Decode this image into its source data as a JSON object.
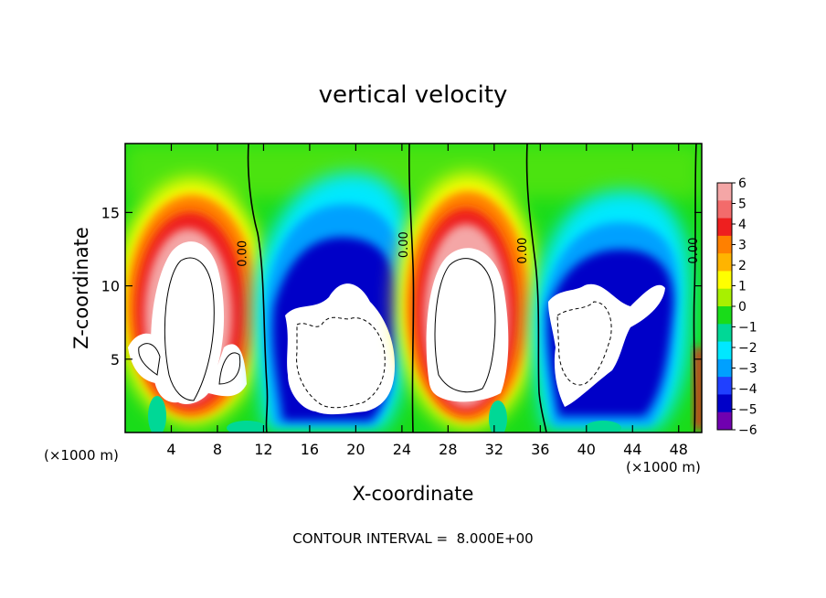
{
  "chart_data": {
    "type": "heatmap",
    "title": "vertical velocity",
    "xlabel": "X-coordinate",
    "ylabel": "Z-coordinate",
    "x_unit_left": "(×1000 m)",
    "x_unit_right": "(×1000 m)",
    "x_ticks": [
      4,
      8,
      12,
      16,
      20,
      24,
      28,
      32,
      36,
      40,
      44,
      48
    ],
    "y_ticks": [
      5,
      10,
      15
    ],
    "xlim": [
      0,
      50
    ],
    "ylim": [
      0,
      19.7
    ],
    "colorbar": {
      "levels": [
        -6,
        -5,
        -4,
        -3,
        -2,
        -1,
        0,
        1,
        2,
        3,
        4,
        5,
        6
      ],
      "labels": [
        "6",
        "5",
        "4",
        "3",
        "2",
        "1",
        "0",
        "−1",
        "−2",
        "−3",
        "−4",
        "−5",
        "−6"
      ],
      "colors": [
        "#f4a6a6",
        "#f36b6b",
        "#ee1f1f",
        "#ff8000",
        "#ffb400",
        "#ffff00",
        "#a8f000",
        "#19dc19",
        "#00d896",
        "#00e8ff",
        "#00a0ff",
        "#2040ff",
        "#0000c8",
        "#7000b0"
      ]
    },
    "contour_labels": [
      {
        "text": "0.00",
        "x": 10.5,
        "z": 12.2
      },
      {
        "text": "0.00",
        "x": 24.5,
        "z": 12.8
      },
      {
        "text": "0.00",
        "x": 34.8,
        "z": 12.4
      },
      {
        "text": "0.00",
        "x": 49.6,
        "z": 12.4
      }
    ],
    "footer": "CONTOUR INTERVAL =  8.000E+00"
  }
}
